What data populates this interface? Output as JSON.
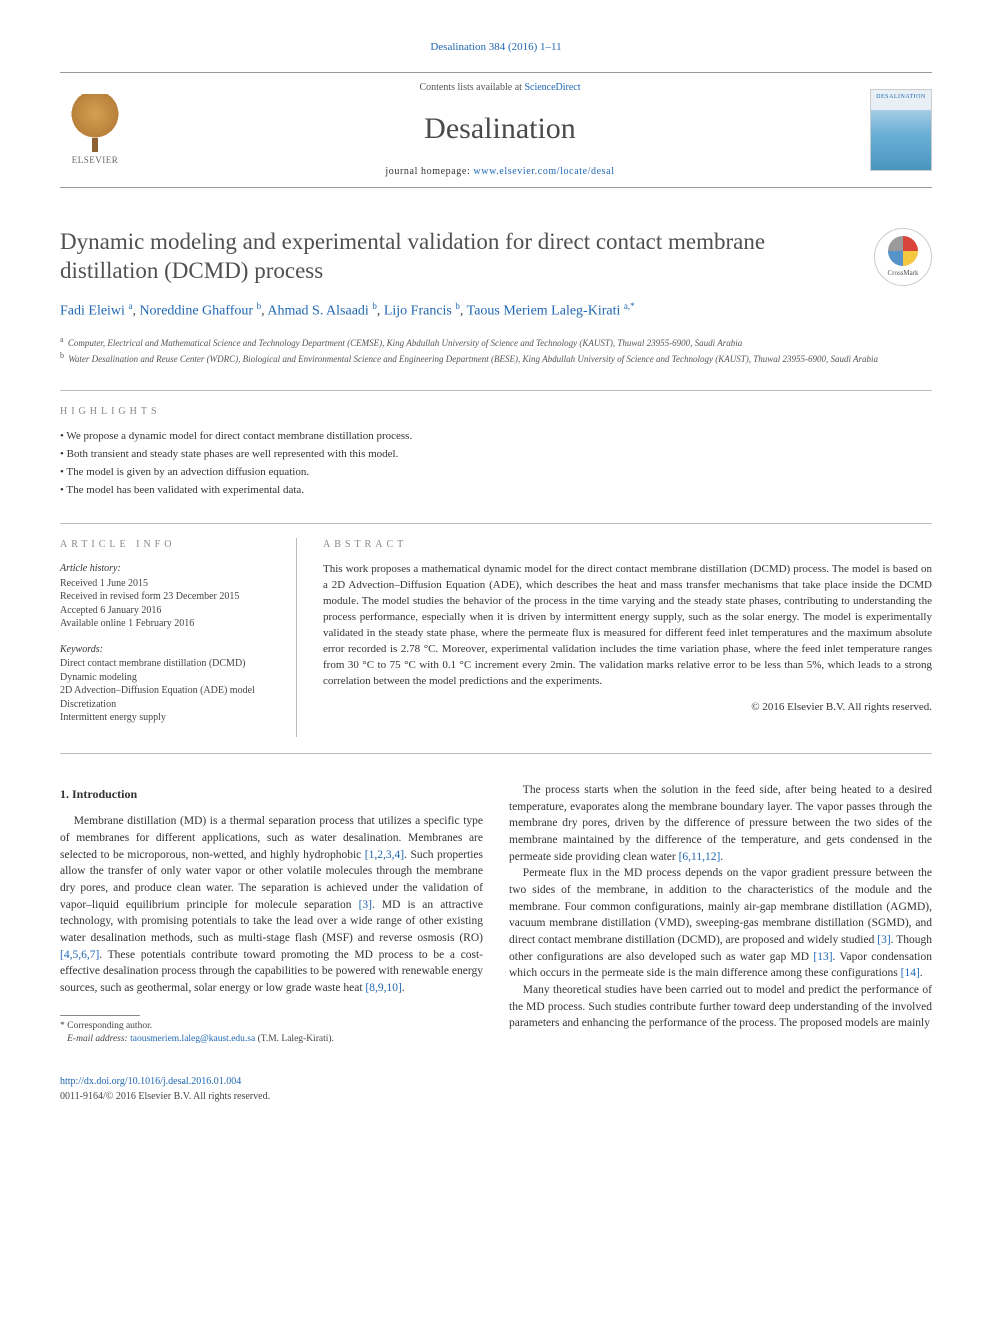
{
  "journal_ref": "Desalination 384 (2016) 1–11",
  "header": {
    "contents_prefix": "Contents lists available at ",
    "contents_link": "ScienceDirect",
    "journal_name": "Desalination",
    "homepage_prefix": "journal homepage: ",
    "homepage_url": "www.elsevier.com/locate/desal",
    "publisher": "ELSEVIER",
    "cover_label": "DESALINATION"
  },
  "article": {
    "title": "Dynamic modeling and experimental validation for direct contact membrane distillation (DCMD) process",
    "crossmark_label": "CrossMark"
  },
  "authors_html": {
    "a0": {
      "name": "Fadi Eleiwi",
      "sup": "a"
    },
    "a1": {
      "name": "Noreddine Ghaffour",
      "sup": "b"
    },
    "a2": {
      "name": "Ahmad S. Alsaadi",
      "sup": "b"
    },
    "a3": {
      "name": "Lijo Francis",
      "sup": "b"
    },
    "a4": {
      "name": "Taous Meriem Laleg-Kirati",
      "sup": "a,",
      "corr": "*"
    }
  },
  "affiliations": {
    "a": "Computer, Electrical and Mathematical Science and Technology Department (CEMSE), King Abdullah University of Science and Technology (KAUST), Thuwal 23955-6900, Saudi Arabia",
    "b": "Water Desalination and Reuse Center (WDRC), Biological and Environmental Science and Engineering Department (BESE), King Abdullah University of Science and Technology (KAUST), Thuwal 23955-6900, Saudi Arabia"
  },
  "highlights": {
    "label": "highlights",
    "items": [
      "We propose a dynamic model for direct contact membrane distillation process.",
      "Both transient and steady state phases are well represented with this model.",
      "The model is given by an advection diffusion equation.",
      "The model has been validated with experimental data."
    ]
  },
  "article_info": {
    "label": "article info",
    "history_head": "Article history:",
    "history": [
      "Received 1 June 2015",
      "Received in revised form 23 December 2015",
      "Accepted 6 January 2016",
      "Available online 1 February 2016"
    ],
    "keywords_head": "Keywords:",
    "keywords": [
      "Direct contact membrane distillation (DCMD)",
      "Dynamic modeling",
      "2D Advection–Diffusion Equation (ADE) model",
      "Discretization",
      "Intermittent energy supply"
    ]
  },
  "abstract": {
    "label": "abstract",
    "text": "This work proposes a mathematical dynamic model for the direct contact membrane distillation (DCMD) process. The model is based on a 2D Advection–Diffusion Equation (ADE), which describes the heat and mass transfer mechanisms that take place inside the DCMD module. The model studies the behavior of the process in the time varying and the steady state phases, contributing to understanding the process performance, especially when it is driven by intermittent energy supply, such as the solar energy. The model is experimentally validated in the steady state phase, where the permeate flux is measured for different feed inlet temperatures and the maximum absolute error recorded is 2.78 °C. Moreover, experimental validation includes the time variation phase, where the feed inlet temperature ranges from 30 °C to 75 °C with 0.1 °C increment every 2min. The validation marks relative error to be less than 5%, which leads to a strong correlation between the model predictions and the experiments.",
    "copyright": "© 2016 Elsevier B.V. All rights reserved."
  },
  "body": {
    "heading": "1. Introduction",
    "p1_pre": "Membrane distillation (MD) is a thermal separation process that utilizes a specific type of membranes for different applications, such as water desalination. Membranes are selected to be microporous, non-wetted, and highly hydrophobic ",
    "p1_ref1": "[1,2,3,4]",
    "p1_mid1": ". Such properties allow the transfer of only water vapor or other volatile molecules through the membrane dry pores, and produce clean water. The separation is achieved under the validation of vapor–liquid equilibrium principle for molecule separation ",
    "p1_ref2": "[3]",
    "p1_mid2": ". MD is an attractive technology, with promising potentials to take the lead over a wide range of other existing water desalination methods, such as multi-stage flash (MSF) and reverse osmosis (RO) ",
    "p1_ref3": "[4,5,6,7]",
    "p1_mid3": ". These potentials contribute toward promoting the MD process to be a cost-effective desalination process through the capabilities to be powered with renewable energy sources, such as geothermal, solar energy or low grade waste heat ",
    "p1_ref4": "[8,9,10]",
    "p1_end": ".",
    "p2_pre": "The process starts when the solution in the feed side, after being heated to a desired temperature, evaporates along the membrane boundary layer. The vapor passes through the membrane dry pores, driven by the difference of pressure between the two sides of the membrane maintained by the difference of the temperature, and gets condensed in the permeate side providing clean water ",
    "p2_ref1": "[6,11,12]",
    "p2_end": ".",
    "p3_pre": "Permeate flux in the MD process depends on the vapor gradient pressure between the two sides of the membrane, in addition to the characteristics of the module and the membrane. Four common configurations, mainly air-gap membrane distillation (AGMD), vacuum membrane distillation (VMD), sweeping-gas membrane distillation (SGMD), and direct contact membrane distillation (DCMD), are proposed and widely studied ",
    "p3_ref1": "[3]",
    "p3_mid1": ". Though other configurations are also developed such as water gap MD ",
    "p3_ref2": "[13]",
    "p3_mid2": ". Vapor condensation which occurs in the permeate side is the main difference among these configurations ",
    "p3_ref3": "[14]",
    "p3_end": ".",
    "p4": "Many theoretical studies have been carried out to model and predict the performance of the MD process. Such studies contribute further toward deep understanding of the involved parameters and enhancing the performance of the process. The proposed models are mainly"
  },
  "footnote": {
    "corr_label": "* Corresponding author.",
    "email_label": "E-mail address:",
    "email": "taousmeriem.laleg@kaust.edu.sa",
    "email_author": "(T.M. Laleg-Kirati)."
  },
  "footer": {
    "doi": "http://dx.doi.org/10.1016/j.desal.2016.01.004",
    "issn_line": "0011-9164/© 2016 Elsevier B.V. All rights reserved."
  },
  "colors": {
    "link": "#2067b3",
    "text": "#333333",
    "muted": "#888888",
    "rule": "#bbbbbb"
  }
}
